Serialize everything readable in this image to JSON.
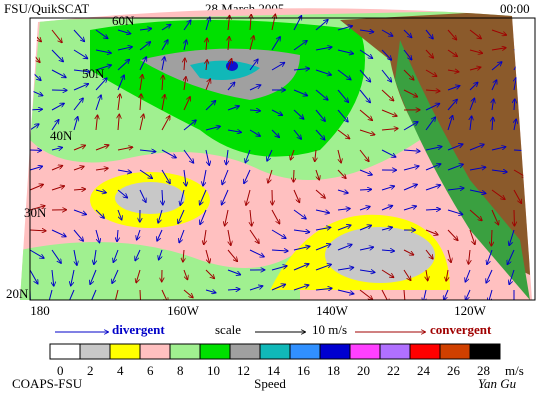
{
  "header": {
    "left": "FSU/QuikSCAT",
    "date": "28 March 2005",
    "time": "00:00"
  },
  "lat_labels": [
    "60N",
    "50N",
    "40N",
    "30N",
    "20N"
  ],
  "lon_labels": [
    "180",
    "160W",
    "140W",
    "120W"
  ],
  "legend": {
    "divergent": "divergent",
    "scale": "scale",
    "scale_value": "10 m/s",
    "convergent": "convergent"
  },
  "colorbar": {
    "labels": [
      0,
      2,
      4,
      6,
      8,
      10,
      12,
      14,
      16,
      18,
      20,
      22,
      24,
      26,
      28
    ],
    "unit": "m/s",
    "title": "Speed"
  },
  "footer": {
    "left": "COAPS-FSU",
    "signature": "Yan Gu"
  }
}
